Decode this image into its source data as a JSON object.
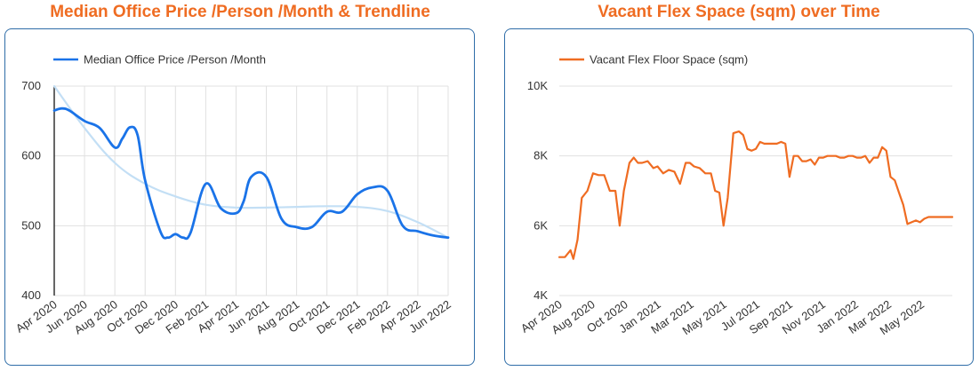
{
  "chart_data": [
    {
      "type": "line",
      "title": "Median Office Price /Person /Month & Trendline",
      "xlabel": "",
      "ylabel": "",
      "ylim": [
        400,
        700
      ],
      "yticks": [
        "400",
        "500",
        "600",
        "700"
      ],
      "x_tick_labels": [
        "Apr 2020",
        "Jun 2020",
        "Aug 2020",
        "Oct 2020",
        "Dec 2020",
        "Feb 2021",
        "Apr 2021",
        "Jun 2021",
        "Aug 2021",
        "Oct 2021",
        "Dec 2021",
        "Feb 2022",
        "Apr 2022",
        "Jun 2022"
      ],
      "x_months": 26,
      "legend": "top-left",
      "grid": true,
      "series": [
        {
          "name": "Median Office Price /Person /Month",
          "color": "#1a73e8",
          "x": [
            0,
            0.5,
            1,
            2,
            3,
            4,
            4.5,
            5,
            5.5,
            6,
            7,
            7.5,
            8,
            8.5,
            9,
            10,
            11,
            12,
            12.5,
            13,
            14,
            15,
            16,
            17,
            18,
            19,
            20,
            21,
            22,
            23,
            24,
            25,
            26
          ],
          "y": [
            665,
            668,
            665,
            650,
            640,
            612,
            625,
            641,
            630,
            565,
            492,
            483,
            488,
            483,
            490,
            560,
            525,
            518,
            535,
            570,
            570,
            510,
            498,
            498,
            520,
            520,
            545,
            555,
            550,
            500,
            492,
            486,
            483
          ]
        },
        {
          "name": "Trendline",
          "color": "#c3dff5",
          "x": [
            0,
            2,
            4,
            6,
            8,
            10,
            12,
            14,
            16,
            18,
            20,
            22,
            24,
            26
          ],
          "y": [
            700,
            640,
            590,
            560,
            542,
            530,
            526,
            526,
            527,
            528,
            527,
            521,
            505,
            483
          ]
        }
      ]
    },
    {
      "type": "line",
      "title": "Vacant Flex Space (sqm) over Time",
      "xlabel": "",
      "ylabel": "",
      "ylim": [
        4000,
        10000
      ],
      "yticks": [
        "4K",
        "6K",
        "8K",
        "10K"
      ],
      "x_tick_labels": [
        "Apr 2020",
        "Aug 2020",
        "Oct 2020",
        "Jan 2021",
        "Mar 2021",
        "May 2021",
        "Jul 2021",
        "Sep 2021",
        "Nov 2021",
        "Jan 2022",
        "Mar 2022",
        "May 2022"
      ],
      "x_months": 28,
      "legend": "top-left",
      "grid": true,
      "series": [
        {
          "name": "Vacant Flex Floor Space (sqm)",
          "color": "#ef6c22",
          "x": [
            0,
            0.4,
            0.8,
            1.0,
            1.3,
            1.6,
            2.0,
            2.4,
            2.8,
            3.2,
            3.6,
            4.0,
            4.3,
            4.6,
            5.0,
            5.3,
            5.6,
            5.9,
            6.3,
            6.7,
            7.0,
            7.4,
            7.8,
            8.2,
            8.6,
            9.0,
            9.3,
            9.6,
            10.0,
            10.4,
            10.8,
            11.1,
            11.4,
            11.7,
            12.0,
            12.4,
            12.8,
            13.1,
            13.4,
            13.7,
            14.0,
            14.3,
            14.6,
            14.9,
            15.2,
            15.5,
            15.8,
            16.1,
            16.4,
            16.7,
            17.0,
            17.3,
            17.6,
            17.9,
            18.2,
            18.5,
            18.8,
            19.1,
            19.4,
            19.7,
            20.0,
            20.3,
            20.6,
            20.9,
            21.2,
            21.5,
            21.8,
            22.1,
            22.4,
            22.7,
            23.0,
            23.3,
            23.6,
            23.9,
            24.2,
            24.5,
            24.8,
            25.1,
            25.4,
            25.7,
            26.0,
            26.3,
            26.6,
            26.9,
            27.2,
            27.6,
            28.0
          ],
          "y": [
            5100,
            5100,
            5300,
            5050,
            5600,
            6800,
            7000,
            7500,
            7450,
            7450,
            7000,
            7000,
            6000,
            7000,
            7800,
            7950,
            7800,
            7800,
            7850,
            7650,
            7700,
            7500,
            7600,
            7550,
            7200,
            7800,
            7800,
            7700,
            7650,
            7500,
            7500,
            7000,
            6950,
            6000,
            6800,
            8650,
            8700,
            8600,
            8200,
            8150,
            8200,
            8400,
            8350,
            8350,
            8350,
            8350,
            8400,
            8350,
            7400,
            8000,
            8000,
            7850,
            7850,
            7900,
            7750,
            7950,
            7950,
            8000,
            8000,
            8000,
            7950,
            7950,
            8000,
            8000,
            7950,
            7950,
            8000,
            7800,
            7950,
            7950,
            8250,
            8150,
            7400,
            7300,
            6950,
            6600,
            6050,
            6100,
            6150,
            6100,
            6200,
            6250,
            6250,
            6250,
            6250,
            6250,
            6250
          ]
        }
      ]
    }
  ]
}
